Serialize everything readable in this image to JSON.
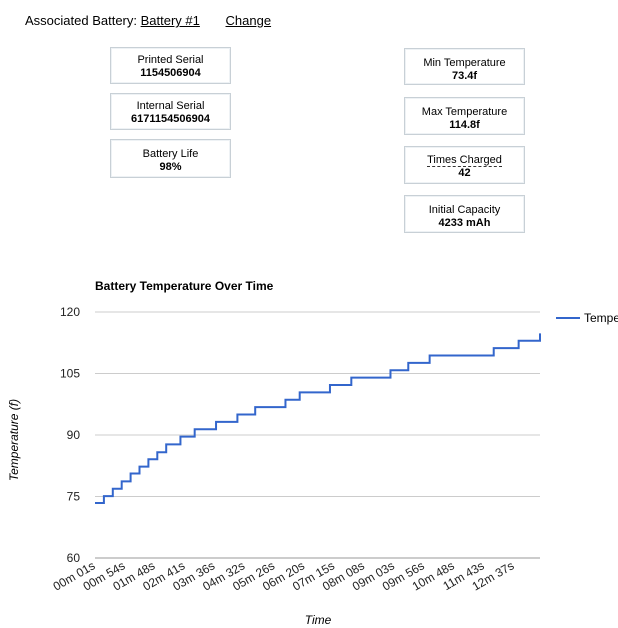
{
  "header": {
    "label": "Associated Battery:",
    "battery_link": "Battery #1",
    "change_link": "Change"
  },
  "stats_left": [
    {
      "label": "Printed Serial",
      "value": "1154506904"
    },
    {
      "label": "Internal Serial",
      "value": "6171154506904"
    },
    {
      "label": "Battery Life",
      "value": "98%"
    }
  ],
  "stats_right": [
    {
      "label": "Min Temperature",
      "value": "73.4f"
    },
    {
      "label": "Max Temperature",
      "value": "114.8f"
    },
    {
      "label": "Times Charged",
      "value": "42"
    },
    {
      "label": "Initial Capacity",
      "value": "4233 mAh"
    }
  ],
  "chart_data": {
    "type": "line",
    "title": "Battery Temperature Over Time",
    "xlabel": "Time",
    "ylabel": "Temperature (f)",
    "ylim": [
      60,
      120
    ],
    "yticks": [
      60,
      75,
      90,
      105,
      120
    ],
    "xticks": [
      "00m 01s",
      "00m 54s",
      "01m 48s",
      "02m 41s",
      "03m 36s",
      "04m 32s",
      "05m 26s",
      "06m 20s",
      "07m 15s",
      "08m 08s",
      "09m 03s",
      "09m 56s",
      "10m 48s",
      "11m 43s",
      "12m 37s"
    ],
    "grid": true,
    "legend_position": "right",
    "series": [
      {
        "name": "Temperature",
        "color": "#3366cc",
        "points": [
          [
            0,
            73.4
          ],
          [
            0.5,
            75.1
          ],
          [
            1,
            76.9
          ],
          [
            1.5,
            78.7
          ],
          [
            2,
            80.6
          ],
          [
            2.5,
            82.3
          ],
          [
            3,
            84.1
          ],
          [
            3.5,
            85.8
          ],
          [
            4,
            87.7
          ],
          [
            4.8,
            89.6
          ],
          [
            5.6,
            91.4
          ],
          [
            6.8,
            93.2
          ],
          [
            8,
            95.0
          ],
          [
            9,
            96.8
          ],
          [
            10.7,
            98.6
          ],
          [
            11.5,
            100.4
          ],
          [
            13.2,
            102.2
          ],
          [
            14.4,
            104.0
          ],
          [
            16.6,
            105.8
          ],
          [
            17.6,
            107.6
          ],
          [
            18.8,
            109.4
          ],
          [
            22.4,
            111.2
          ],
          [
            23.8,
            113.0
          ],
          [
            25,
            114.8
          ]
        ]
      }
    ],
    "x_max": 25
  }
}
